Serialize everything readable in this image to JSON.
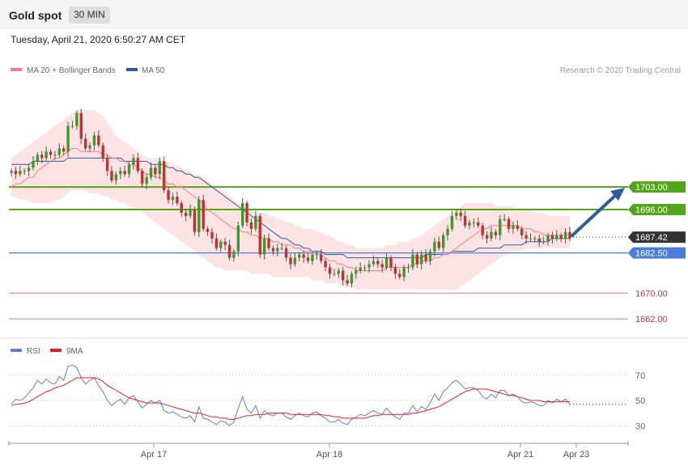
{
  "header": {
    "title": "Gold spot",
    "interval": "30 MIN",
    "datetime": "Tuesday, April 21, 2020 6:50:27 AM CET"
  },
  "credit": "Research © 2020 Trading Central",
  "colors": {
    "candle_up": "#3a9a2a",
    "candle_down": "#c4302b",
    "ma20": "#f08080",
    "bollinger_fill": "#fde0e0",
    "ma50": "#2f5a9e",
    "resistance": "#55a51c",
    "support": "#4a7ed9",
    "target": "#f07070",
    "rsi": "#5b7fd6",
    "rsi_ma": "#e02020",
    "arrow": "#2f5a9e"
  },
  "chart_data": [
    {
      "type": "candlestick",
      "legend": [
        {
          "name": "MA 20 + Bollinger Bands",
          "color": "#f08080"
        },
        {
          "name": "MA 50",
          "color": "#2f5a9e"
        }
      ],
      "x_tick_labels": [
        "Apr 17",
        "Apr 18",
        "Apr 21",
        "Apr 23"
      ],
      "ylim": [
        1658,
        1736
      ],
      "current_price": {
        "value": 1687.42,
        "label": "1687.42"
      },
      "levels": [
        {
          "kind": "resistance",
          "value": 1703.0,
          "label": "1703.00"
        },
        {
          "kind": "resistance",
          "value": 1696.0,
          "label": "1696.00"
        },
        {
          "kind": "support",
          "value": 1682.5,
          "label": "1682.50"
        },
        {
          "kind": "target",
          "value": 1670.0,
          "label": "1670.00"
        },
        {
          "kind": "target",
          "value": 1662.0,
          "label": "1662.00"
        }
      ],
      "forecast_arrow": {
        "from": 1687.42,
        "to": 1703.0,
        "direction": "up"
      },
      "closes": [
        1708,
        1707,
        1708,
        1708,
        1709,
        1711,
        1713,
        1712,
        1714,
        1713,
        1713,
        1715,
        1714,
        1722,
        1722,
        1726,
        1718,
        1715,
        1716,
        1719,
        1716,
        1712,
        1708,
        1705,
        1707,
        1708,
        1707,
        1710,
        1712,
        1708,
        1704,
        1706,
        1709,
        1707,
        1711,
        1702,
        1699,
        1700,
        1698,
        1695,
        1694,
        1696,
        1689,
        1699,
        1690,
        1689,
        1687,
        1684,
        1686,
        1685,
        1681,
        1683,
        1691,
        1698,
        1692,
        1690,
        1694,
        1682,
        1687,
        1684,
        1683,
        1684,
        1684,
        1681,
        1679,
        1681,
        1682,
        1681,
        1680,
        1682,
        1682,
        1680,
        1678,
        1676,
        1676,
        1677,
        1674,
        1673,
        1676,
        1677,
        1678,
        1678,
        1679,
        1680,
        1679,
        1678,
        1681,
        1678,
        1676,
        1675,
        1678,
        1678,
        1682,
        1679,
        1682,
        1680,
        1683,
        1686,
        1684,
        1688,
        1690,
        1694,
        1695,
        1694,
        1691,
        1692,
        1692,
        1691,
        1688,
        1687,
        1689,
        1688,
        1693,
        1693,
        1690,
        1691,
        1690,
        1688,
        1687,
        1687,
        1687,
        1686,
        1686,
        1688,
        1687,
        1688,
        1687,
        1689,
        1687
      ],
      "ma20": [
        1703,
        1704,
        1704,
        1705,
        1706,
        1706,
        1708,
        1709,
        1710,
        1711,
        1712,
        1712,
        1713,
        1714,
        1715,
        1715,
        1714,
        1714,
        1714,
        1714,
        1714,
        1713,
        1713,
        1712,
        1712,
        1711,
        1711,
        1710,
        1710,
        1709,
        1708,
        1707,
        1707,
        1706,
        1706,
        1705,
        1704,
        1704,
        1703,
        1703,
        1702,
        1701,
        1700,
        1699,
        1698,
        1696,
        1695,
        1694,
        1693,
        1692,
        1691,
        1690,
        1690,
        1689,
        1689,
        1688,
        1688,
        1687,
        1687,
        1687,
        1686,
        1686,
        1685,
        1685,
        1685,
        1684,
        1684,
        1683,
        1683,
        1683,
        1682,
        1682,
        1681,
        1680,
        1680,
        1679,
        1679,
        1678,
        1678,
        1677,
        1677,
        1677,
        1677,
        1677,
        1677,
        1677,
        1678,
        1678,
        1678,
        1678,
        1678,
        1678,
        1679,
        1679,
        1680,
        1680,
        1680,
        1681,
        1681,
        1682,
        1682,
        1683,
        1684,
        1685,
        1686,
        1687,
        1688,
        1689,
        1690,
        1690,
        1691,
        1691,
        1691,
        1691,
        1691,
        1691,
        1691,
        1690,
        1690,
        1690,
        1689,
        1689,
        1688,
        1688,
        1688,
        1688,
        1688,
        1688,
        1688
      ],
      "bb_upper": [
        1712,
        1713,
        1714,
        1715,
        1716,
        1717,
        1718,
        1719,
        1720,
        1721,
        1722,
        1723,
        1724,
        1725,
        1726,
        1727,
        1727,
        1727,
        1727,
        1727,
        1726,
        1725,
        1723,
        1721,
        1719,
        1718,
        1717,
        1716,
        1715,
        1714,
        1713,
        1712,
        1712,
        1712,
        1712,
        1711,
        1711,
        1710,
        1710,
        1709,
        1708,
        1708,
        1707,
        1707,
        1706,
        1705,
        1704,
        1703,
        1702,
        1701,
        1700,
        1699,
        1698,
        1697,
        1696,
        1696,
        1695,
        1695,
        1695,
        1694,
        1694,
        1693,
        1693,
        1692,
        1692,
        1691,
        1691,
        1690,
        1690,
        1690,
        1689,
        1689,
        1688,
        1688,
        1687,
        1686,
        1686,
        1685,
        1685,
        1684,
        1684,
        1684,
        1684,
        1684,
        1684,
        1684,
        1685,
        1685,
        1685,
        1686,
        1686,
        1686,
        1687,
        1687,
        1688,
        1689,
        1690,
        1691,
        1692,
        1693,
        1694,
        1695,
        1696,
        1697,
        1698,
        1698,
        1698,
        1698,
        1698,
        1698,
        1698,
        1697,
        1697,
        1697,
        1697,
        1697,
        1696,
        1696,
        1696,
        1696,
        1695,
        1695,
        1695,
        1694,
        1694,
        1694,
        1694,
        1694,
        1694
      ],
      "bb_lower": [
        1700,
        1700,
        1699,
        1699,
        1699,
        1698,
        1698,
        1698,
        1698,
        1698,
        1699,
        1699,
        1700,
        1701,
        1702,
        1702,
        1702,
        1702,
        1701,
        1701,
        1701,
        1700,
        1700,
        1699,
        1699,
        1698,
        1698,
        1697,
        1697,
        1696,
        1695,
        1694,
        1693,
        1692,
        1691,
        1690,
        1689,
        1688,
        1687,
        1686,
        1685,
        1684,
        1683,
        1682,
        1681,
        1680,
        1679,
        1678,
        1678,
        1677,
        1677,
        1677,
        1677,
        1677,
        1677,
        1676,
        1676,
        1676,
        1676,
        1676,
        1675,
        1675,
        1675,
        1675,
        1675,
        1675,
        1675,
        1675,
        1675,
        1674,
        1674,
        1674,
        1673,
        1673,
        1673,
        1673,
        1672,
        1672,
        1672,
        1671,
        1671,
        1671,
        1671,
        1671,
        1671,
        1671,
        1671,
        1671,
        1671,
        1671,
        1671,
        1671,
        1671,
        1671,
        1671,
        1671,
        1671,
        1671,
        1671,
        1671,
        1671,
        1671,
        1671,
        1672,
        1673,
        1674,
        1675,
        1676,
        1677,
        1678,
        1679,
        1680,
        1681,
        1682,
        1682,
        1683,
        1683,
        1683,
        1684,
        1684,
        1684,
        1684,
        1684,
        1684,
        1684,
        1684,
        1684,
        1684,
        1684
      ],
      "ma50": [
        1710,
        1710,
        1710,
        1710,
        1710,
        1711,
        1711,
        1711,
        1711,
        1711,
        1711,
        1711,
        1711,
        1712,
        1712,
        1712,
        1712,
        1712,
        1712,
        1712,
        1712,
        1712,
        1712,
        1712,
        1712,
        1712,
        1711,
        1711,
        1711,
        1711,
        1711,
        1711,
        1710,
        1710,
        1710,
        1710,
        1709,
        1709,
        1708,
        1708,
        1707,
        1707,
        1706,
        1706,
        1705,
        1704,
        1703,
        1702,
        1701,
        1700,
        1699,
        1698,
        1697,
        1696,
        1695,
        1694,
        1693,
        1692,
        1691,
        1690,
        1689,
        1688,
        1687,
        1687,
        1686,
        1685,
        1685,
        1684,
        1684,
        1683,
        1683,
        1683,
        1682,
        1682,
        1682,
        1682,
        1682,
        1681,
        1681,
        1681,
        1681,
        1681,
        1681,
        1681,
        1681,
        1681,
        1681,
        1681,
        1681,
        1681,
        1681,
        1681,
        1681,
        1681,
        1681,
        1682,
        1682,
        1682,
        1682,
        1682,
        1682,
        1683,
        1683,
        1683,
        1683,
        1683,
        1683,
        1684,
        1684,
        1684,
        1684,
        1684,
        1684,
        1685,
        1685,
        1685,
        1685,
        1685,
        1686,
        1686,
        1686,
        1686,
        1686,
        1686,
        1687,
        1687,
        1687,
        1687,
        1687
      ]
    },
    {
      "type": "line",
      "legend": [
        {
          "name": "RSI",
          "color": "#5b7fd6"
        },
        {
          "name": "9MA",
          "color": "#e02020"
        }
      ],
      "y_ticks": [
        "70",
        "50",
        "30"
      ],
      "ylim": [
        18,
        82
      ],
      "dotted_levels": [
        70,
        50,
        30
      ],
      "rsi": [
        47,
        51,
        50,
        52,
        56,
        60,
        66,
        63,
        67,
        64,
        63,
        69,
        66,
        77,
        78,
        76,
        68,
        63,
        66,
        68,
        62,
        57,
        50,
        46,
        49,
        51,
        47,
        52,
        54,
        49,
        44,
        47,
        50,
        48,
        50,
        42,
        40,
        41,
        39,
        37,
        36,
        38,
        33,
        45,
        36,
        35,
        33,
        31,
        34,
        33,
        30,
        33,
        44,
        53,
        43,
        40,
        46,
        36,
        42,
        39,
        38,
        40,
        40,
        37,
        35,
        38,
        40,
        38,
        37,
        40,
        41,
        38,
        36,
        33,
        33,
        35,
        32,
        31,
        35,
        37,
        39,
        38,
        40,
        42,
        40,
        39,
        44,
        40,
        37,
        35,
        40,
        40,
        46,
        41,
        45,
        43,
        48,
        55,
        50,
        57,
        60,
        64,
        66,
        63,
        59,
        60,
        60,
        58,
        53,
        51,
        55,
        52,
        58,
        58,
        54,
        55,
        53,
        49,
        48,
        49,
        48,
        46,
        46,
        50,
        48,
        51,
        49,
        51,
        47
      ],
      "ma9": [
        46,
        47,
        47,
        48,
        49,
        51,
        53,
        55,
        57,
        58,
        60,
        61,
        62,
        64,
        66,
        68,
        68,
        68,
        68,
        68,
        67,
        65,
        62,
        60,
        58,
        56,
        54,
        52,
        51,
        50,
        49,
        48,
        48,
        48,
        48,
        47,
        46,
        45,
        44,
        43,
        42,
        41,
        40,
        40,
        39,
        38,
        37,
        37,
        36,
        36,
        35,
        35,
        36,
        37,
        38,
        38,
        39,
        39,
        39,
        40,
        40,
        40,
        40,
        40,
        39,
        39,
        39,
        39,
        39,
        39,
        39,
        39,
        38,
        38,
        37,
        37,
        36,
        36,
        36,
        36,
        36,
        36,
        37,
        38,
        38,
        39,
        39,
        39,
        39,
        39,
        39,
        39,
        40,
        40,
        41,
        42,
        43,
        44,
        45,
        47,
        49,
        51,
        53,
        55,
        57,
        58,
        59,
        59,
        59,
        59,
        58,
        57,
        56,
        55,
        54,
        54,
        53,
        52,
        51,
        50,
        50,
        50,
        49,
        49,
        49,
        49,
        49,
        49,
        49
      ]
    }
  ]
}
